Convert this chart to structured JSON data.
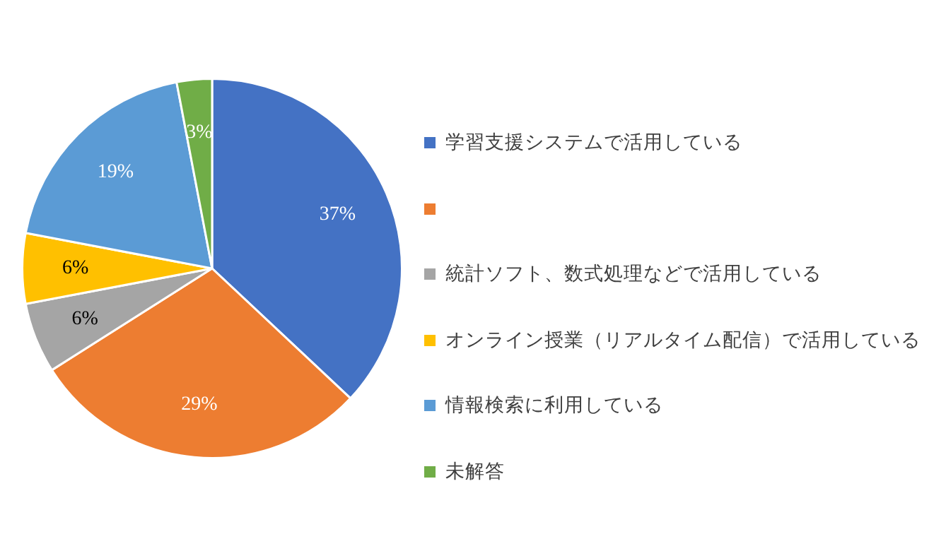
{
  "chart_data": {
    "type": "pie",
    "categories": [
      "学習支援システムで活用している",
      null,
      "統計ソフト、数式処理などで活用している",
      "オンライン授業（リアルタイム配信）で活用している",
      "情報検索に利用している",
      "未解答"
    ],
    "values": [
      37,
      29,
      6,
      6,
      19,
      3
    ],
    "colors": [
      "#4472c4",
      "#ed7d31",
      "#a5a5a5",
      "#ffc000",
      "#5b9bd5",
      "#70ad47"
    ],
    "value_labels": [
      "37%",
      "29%",
      "6%",
      "6%",
      "19%",
      "3%"
    ],
    "legend": "right"
  }
}
